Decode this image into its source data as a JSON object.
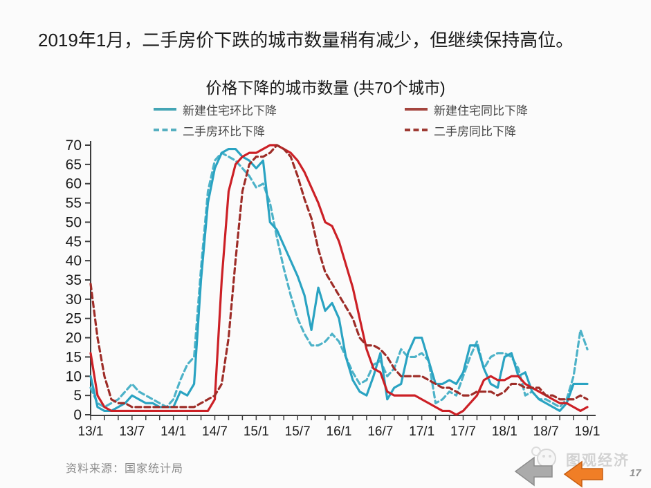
{
  "header": {
    "title": "2019年1月，二手房价下跌的城市数量稍有减少，但继续保持高位。"
  },
  "footer": {
    "source": "资料来源：国家统计局",
    "watermark": "图观经济",
    "page_number": "17"
  },
  "chart_data": {
    "type": "line",
    "title": "价格下降的城市数量 (共70个城市)",
    "x_range": [
      "13/1",
      "19/1"
    ],
    "x_tick_labels": [
      "13/1",
      "13/7",
      "14/1",
      "14/7",
      "15/1",
      "15/7",
      "16/1",
      "16/7",
      "17/1",
      "17/7",
      "18/1",
      "18/7",
      "19/1"
    ],
    "x_label_every_months": 6,
    "x_minor_tick_every": 2,
    "points_per_series": 73,
    "ylim": [
      0,
      70
    ],
    "y_ticks": [
      0,
      5,
      10,
      15,
      20,
      25,
      30,
      35,
      40,
      45,
      50,
      55,
      60,
      65,
      70
    ],
    "grid": false,
    "legend_position": "top-two-rows",
    "axis_color": "#3d3d3d",
    "tick_label_color": "#1a1a1a",
    "draw_order": [
      2,
      0,
      1,
      3
    ],
    "series": [
      {
        "name": "新建住宅环比下降",
        "dash": "solid",
        "color": "#2aa3c2",
        "legend_color": "#44a5b5",
        "values": [
          10,
          2,
          1,
          1,
          2,
          3,
          5,
          4,
          3,
          3,
          2,
          2,
          2,
          6,
          5,
          8,
          35,
          55,
          64,
          68,
          69,
          69,
          67,
          66,
          64,
          66,
          50,
          48,
          44,
          40,
          36,
          31,
          22,
          33,
          27,
          29,
          25,
          15,
          9,
          6,
          5,
          10,
          16,
          4,
          7,
          8,
          16,
          20,
          20,
          14,
          8,
          8,
          9,
          8,
          11,
          18,
          18,
          12,
          8,
          7,
          15,
          16,
          10,
          11,
          6,
          4,
          3,
          2,
          1,
          3,
          8,
          8,
          8
        ]
      },
      {
        "name": "新建住宅同比下降",
        "dash": "solid",
        "color": "#cc2026",
        "legend_color": "#a4453e",
        "values": [
          16,
          5,
          2,
          1,
          1,
          1,
          1,
          1,
          1,
          1,
          1,
          1,
          1,
          1,
          1,
          1,
          1,
          1,
          4,
          35,
          58,
          65,
          67,
          68,
          68,
          69,
          70,
          70,
          69,
          68,
          66,
          63,
          59,
          55,
          50,
          49,
          45,
          39,
          33,
          25,
          17,
          12,
          11,
          6,
          5,
          5,
          5,
          5,
          4,
          3,
          2,
          1,
          1,
          0,
          1,
          3,
          5,
          9,
          10,
          9,
          9,
          10,
          10,
          8,
          7,
          6,
          5,
          4,
          3,
          3,
          2,
          1,
          2
        ]
      },
      {
        "name": "二手房环比下降",
        "dash": "dashed",
        "color": "#4db2c8",
        "legend_color": "#55afc0",
        "values": [
          7,
          3,
          2,
          3,
          4,
          6,
          8,
          6,
          5,
          4,
          3,
          2,
          4,
          9,
          13,
          15,
          38,
          58,
          66,
          68,
          67,
          66,
          64,
          62,
          59,
          60,
          55,
          46,
          38,
          31,
          25,
          21,
          18,
          18,
          19,
          21,
          19,
          15,
          11,
          8,
          9,
          13,
          14,
          10,
          12,
          17,
          15,
          15,
          16,
          14,
          3,
          4,
          6,
          5,
          10,
          15,
          19,
          12,
          15,
          16,
          16,
          15,
          12,
          5,
          6,
          4,
          4,
          3,
          2,
          4,
          10,
          22,
          17
        ]
      },
      {
        "name": "二手房同比下降",
        "dash": "dashed",
        "color": "#9e2d28",
        "legend_color": "#9e3a33",
        "values": [
          34,
          20,
          10,
          4,
          3,
          3,
          2,
          2,
          2,
          2,
          2,
          2,
          2,
          2,
          2,
          2,
          3,
          4,
          5,
          8,
          20,
          40,
          58,
          65,
          67,
          67,
          68,
          70,
          69,
          67,
          62,
          56,
          51,
          43,
          37,
          34,
          31,
          28,
          25,
          20,
          18,
          18,
          17,
          15,
          12,
          10,
          10,
          10,
          10,
          9,
          8,
          7,
          7,
          6,
          5,
          5,
          6,
          6,
          6,
          5,
          6,
          8,
          8,
          7,
          7,
          7,
          5,
          5,
          4,
          4,
          4,
          5,
          4
        ]
      }
    ]
  }
}
